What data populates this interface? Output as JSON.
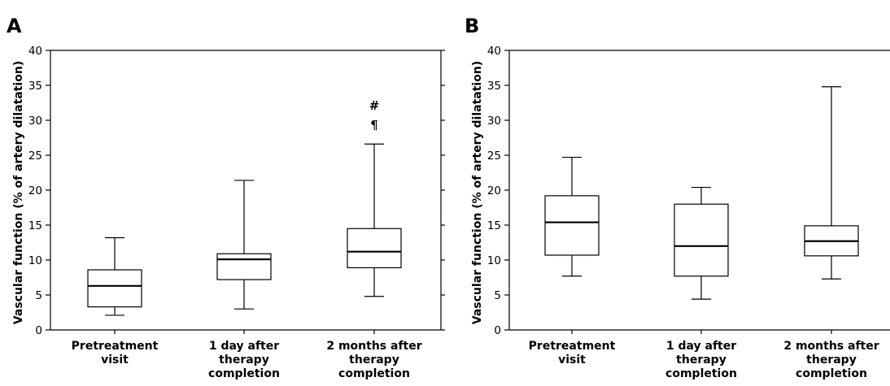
{
  "chart_data": [
    {
      "type": "boxplot",
      "panel_label": "A",
      "ylabel": "Vascular function (% of artery dilatation)",
      "ylim": [
        0,
        40
      ],
      "yticks": [
        0,
        5,
        10,
        15,
        20,
        25,
        30,
        35,
        40
      ],
      "grid": false,
      "categories": [
        [
          "Pretreatment",
          "visit"
        ],
        [
          "1 day after",
          "therapy",
          "completion"
        ],
        [
          "2 months after",
          "therapy",
          "completion"
        ]
      ],
      "boxes": [
        {
          "min": 2.1,
          "q1": 3.3,
          "median": 6.3,
          "q3": 8.6,
          "max": 13.2,
          "annotations": []
        },
        {
          "min": 3.0,
          "q1": 7.2,
          "median": 10.1,
          "q3": 10.9,
          "max": 21.4,
          "annotations": []
        },
        {
          "min": 4.8,
          "q1": 8.9,
          "median": 11.2,
          "q3": 14.5,
          "max": 26.6,
          "annotations": [
            "#",
            "¶"
          ]
        }
      ]
    },
    {
      "type": "boxplot",
      "panel_label": "B",
      "ylabel": "Vascular function (% of artery dilatation)",
      "ylim": [
        0,
        40
      ],
      "yticks": [
        0,
        5,
        10,
        15,
        20,
        25,
        30,
        35,
        40
      ],
      "grid": false,
      "categories": [
        [
          "Pretreatment",
          "visit"
        ],
        [
          "1 day after",
          "therapy",
          "completion"
        ],
        [
          "2 months after",
          "therapy",
          "completion"
        ]
      ],
      "boxes": [
        {
          "min": 7.7,
          "q1": 10.7,
          "median": 15.4,
          "q3": 19.2,
          "max": 24.7,
          "annotations": []
        },
        {
          "min": 4.4,
          "q1": 7.7,
          "median": 12.0,
          "q3": 18.0,
          "max": 20.4,
          "annotations": []
        },
        {
          "min": 7.3,
          "q1": 10.6,
          "median": 12.7,
          "q3": 14.9,
          "max": 34.8,
          "annotations": []
        }
      ]
    }
  ]
}
